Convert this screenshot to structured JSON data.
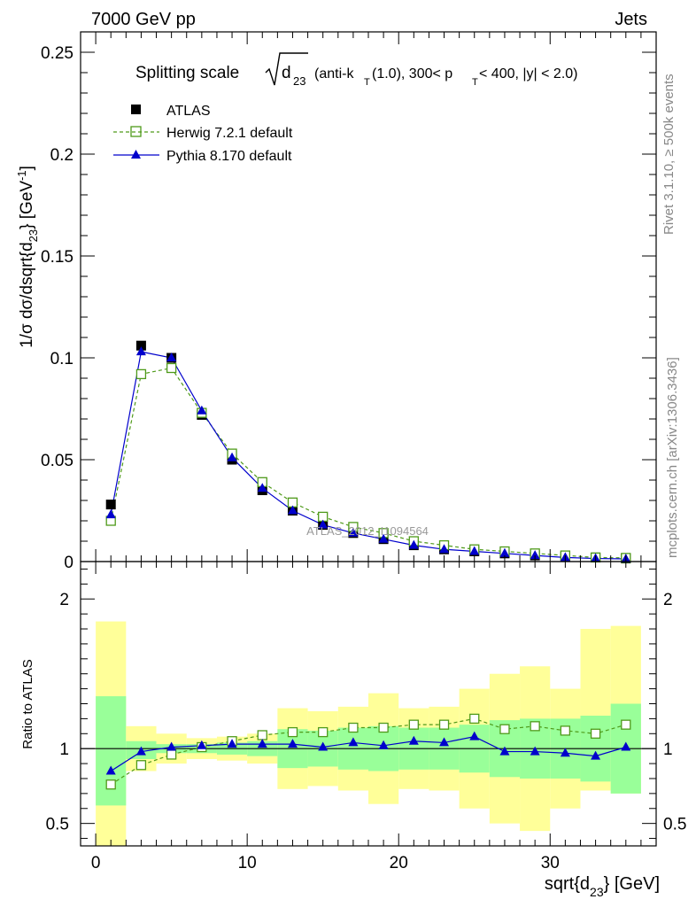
{
  "header": {
    "left": "7000 GeV pp",
    "right": "Jets"
  },
  "side_labels": {
    "rivet": "Rivet 3.1.10, ≥ 500k events",
    "mcplots": "mcplots.cern.ch [arXiv:1306.3436]"
  },
  "watermark": "ATLAS_2012_I1094564",
  "title": {
    "main": "Splitting scale",
    "radicand": "d",
    "radicand_sub": "23",
    "cuts": "(anti-k",
    "cuts_sub": "T",
    "cuts_rest": "(1.0), 300< p",
    "cuts_sub2": "T",
    "cuts_end": " < 400, |y| < 2.0)"
  },
  "legend": [
    {
      "name": "ATLAS",
      "color": "#000000",
      "marker": "square-filled"
    },
    {
      "name": "Herwig 7.2.1 default",
      "color": "#4f9a1a",
      "marker": "square-open"
    },
    {
      "name": "Pythia 8.170 default",
      "color": "#0000cc",
      "marker": "triangle"
    }
  ],
  "chart_data": {
    "type": "line",
    "title": "Splitting scale sqrt(d23) (anti-kT(1.0), 300< pT < 400, |y| < 2.0)",
    "xlabel": "sqrt{d23} [GeV]",
    "ylabel": "1/σ dσ/dsqrt{d23} [GeV-1]",
    "ratio_ylabel": "Ratio to ATLAS",
    "xlim": [
      -1,
      37
    ],
    "ylim": [
      0,
      0.26
    ],
    "ratio_ylim": [
      0.35,
      2.25
    ],
    "x_ticks": [
      "0",
      "10",
      "20",
      "30"
    ],
    "y_ticks": [
      "0",
      "0.05",
      "0.1",
      "0.15",
      "0.2",
      "0.25"
    ],
    "ratio_ticks": [
      "0.5",
      "1",
      "2"
    ],
    "bins": [
      [
        0,
        2
      ],
      [
        2,
        4
      ],
      [
        4,
        6
      ],
      [
        6,
        8
      ],
      [
        8,
        10
      ],
      [
        10,
        12
      ],
      [
        12,
        14
      ],
      [
        14,
        16
      ],
      [
        16,
        18
      ],
      [
        18,
        20
      ],
      [
        20,
        22
      ],
      [
        22,
        24
      ],
      [
        24,
        26
      ],
      [
        26,
        28
      ],
      [
        28,
        30
      ],
      [
        30,
        32
      ],
      [
        32,
        34
      ],
      [
        34,
        36
      ]
    ],
    "x": [
      1,
      3,
      5,
      7,
      9,
      11,
      13,
      15,
      17,
      19,
      21,
      23,
      25,
      27,
      29,
      31,
      33,
      35
    ],
    "series": [
      {
        "name": "ATLAS",
        "values": [
          0.028,
          0.106,
          0.1,
          0.072,
          0.05,
          0.035,
          0.025,
          0.018,
          0.014,
          0.011,
          0.008,
          0.006,
          0.005,
          0.004,
          0.003,
          0.0025,
          0.002,
          0.0015
        ]
      },
      {
        "name": "Herwig 7.2.1 default",
        "values": [
          0.02,
          0.092,
          0.095,
          0.073,
          0.053,
          0.039,
          0.029,
          0.022,
          0.017,
          0.014,
          0.01,
          0.008,
          0.006,
          0.005,
          0.004,
          0.003,
          0.002,
          0.0018
        ]
      },
      {
        "name": "Pythia 8.170 default",
        "values": [
          0.023,
          0.103,
          0.1,
          0.074,
          0.051,
          0.036,
          0.025,
          0.018,
          0.014,
          0.011,
          0.008,
          0.006,
          0.005,
          0.004,
          0.003,
          0.002,
          0.0015,
          0.0013
        ]
      }
    ],
    "ratio_series": [
      {
        "name": "Herwig 7.2.1 default",
        "values": [
          0.76,
          0.89,
          0.96,
          1.01,
          1.05,
          1.09,
          1.11,
          1.11,
          1.14,
          1.14,
          1.16,
          1.16,
          1.2,
          1.13,
          1.15,
          1.12,
          1.1,
          1.16
        ]
      },
      {
        "name": "Pythia 8.170 default",
        "values": [
          0.85,
          0.98,
          1.01,
          1.02,
          1.03,
          1.03,
          1.03,
          1.01,
          1.04,
          1.02,
          1.05,
          1.04,
          1.08,
          0.98,
          0.98,
          0.97,
          0.95,
          1.01
        ]
      }
    ],
    "stat_band": {
      "lo": [
        0.62,
        0.93,
        0.97,
        0.97,
        0.96,
        0.95,
        0.87,
        0.88,
        0.86,
        0.85,
        0.86,
        0.86,
        0.84,
        0.81,
        0.8,
        0.8,
        0.78,
        0.7
      ],
      "hi": [
        1.35,
        1.05,
        1.03,
        1.03,
        1.04,
        1.05,
        1.13,
        1.12,
        1.14,
        1.15,
        1.14,
        1.14,
        1.16,
        1.19,
        1.2,
        1.2,
        1.22,
        1.3
      ]
    },
    "total_band": {
      "lo": [
        0.35,
        0.85,
        0.9,
        0.93,
        0.92,
        0.9,
        0.73,
        0.75,
        0.72,
        0.63,
        0.73,
        0.72,
        0.6,
        0.5,
        0.45,
        0.6,
        0.72,
        0.7
      ],
      "hi": [
        1.85,
        1.15,
        1.1,
        1.07,
        1.08,
        1.1,
        1.27,
        1.25,
        1.28,
        1.37,
        1.27,
        1.28,
        1.4,
        1.5,
        1.55,
        1.4,
        1.8,
        1.82
      ]
    },
    "colors": {
      "stat": "#99ff99",
      "total": "#ffff99",
      "atlas": "#000000",
      "herwig": "#4f9a1a",
      "pythia": "#0000cc"
    }
  }
}
